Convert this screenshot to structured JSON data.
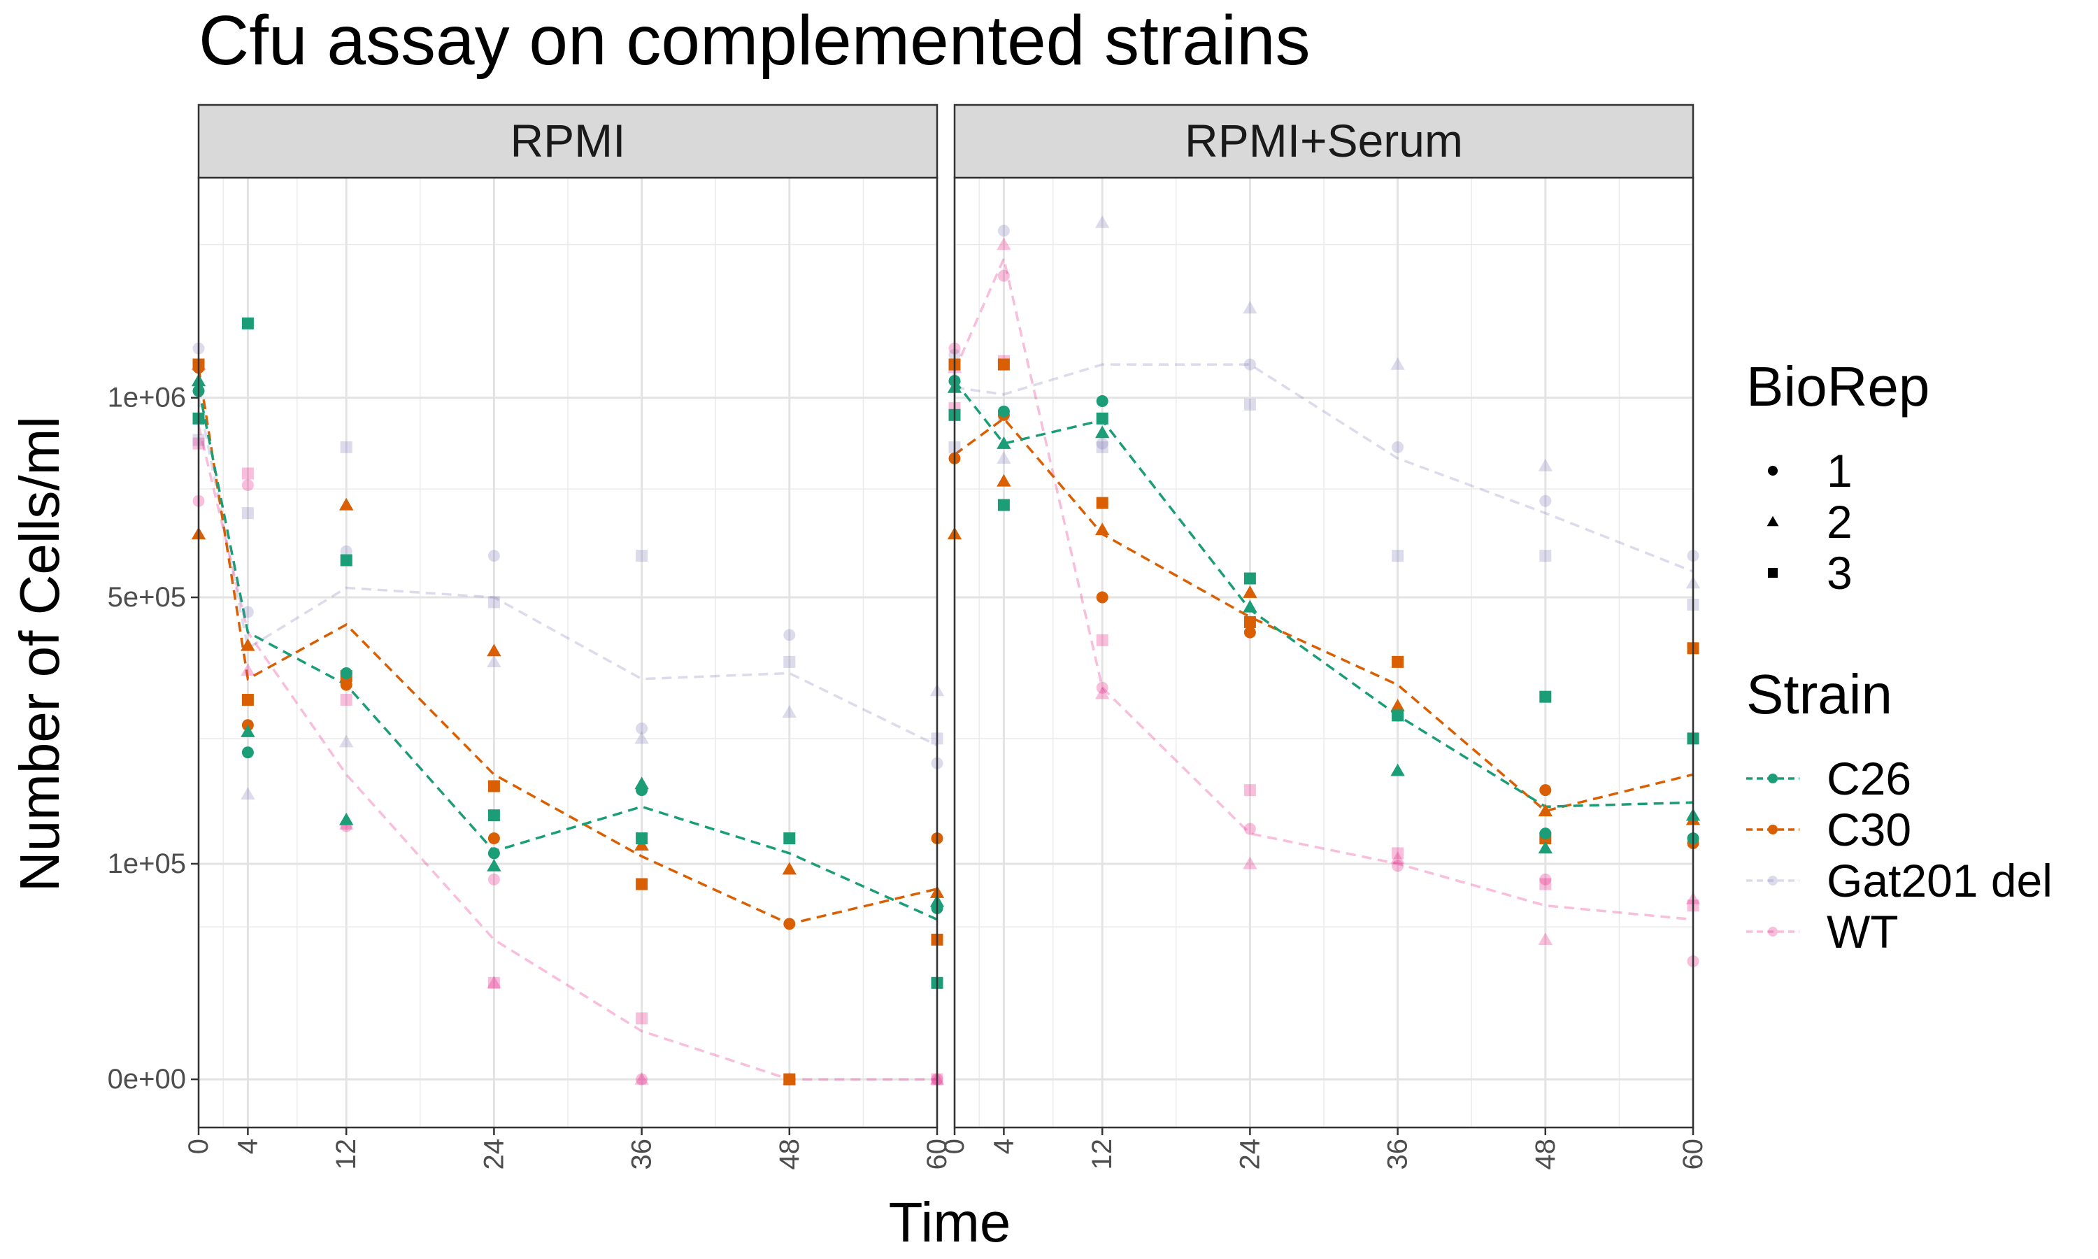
{
  "chart_data": {
    "type": "line",
    "title": "Cfu assay on complemented strains",
    "xlabel": "Time",
    "ylabel": "Number of Cells/ml",
    "x_ticks": [
      0,
      4,
      12,
      24,
      36,
      48,
      60
    ],
    "xlim": [
      0,
      60
    ],
    "y_scale": "sqrt",
    "y_ticks": [
      0,
      100000,
      500000,
      1000000
    ],
    "y_tick_labels": [
      "0e+00",
      "1e+05",
      "5e+05",
      "1e+06"
    ],
    "ylim": [
      -5000,
      1750000
    ],
    "grid": true,
    "legend_position": "right",
    "legends": {
      "shape": {
        "title": "BioRep",
        "entries": [
          "1",
          "2",
          "3"
        ],
        "shapes": [
          "circle",
          "triangle",
          "square"
        ]
      },
      "color": {
        "title": "Strain",
        "entries": [
          "C26",
          "C30",
          "Gat201 del",
          "WT"
        ]
      }
    },
    "colors": {
      "C26": "#1b9e77",
      "C30": "#d95f02",
      "Gat201 del": "#7570b3",
      "WT": "#e7298a"
    },
    "series_alpha": {
      "C26": 1,
      "C30": 1,
      "Gat201 del": 0.25,
      "WT": 0.3
    },
    "panels": [
      {
        "strip": "RPMI",
        "lines": {
          "C26": [
            [
              0,
              1030000
            ],
            [
              4,
              430000
            ],
            [
              12,
              335000
            ],
            [
              24,
              112000
            ],
            [
              36,
              160000
            ],
            [
              48,
              110000
            ],
            [
              60,
              55000
            ]
          ],
          "C30": [
            [
              0,
              1090000
            ],
            [
              4,
              345000
            ],
            [
              12,
              445000
            ],
            [
              24,
              200000
            ],
            [
              36,
              107000
            ],
            [
              48,
              52000
            ],
            [
              60,
              78000
            ]
          ],
          "Gat201 del": [
            [
              0,
              1000000
            ],
            [
              4,
              400000
            ],
            [
              12,
              520000
            ],
            [
              24,
              500000
            ],
            [
              36,
              345000
            ],
            [
              48,
              355000
            ],
            [
              60,
              240000
            ]
          ],
          "WT": [
            [
              0,
              920000
            ],
            [
              4,
              430000
            ],
            [
              12,
              200000
            ],
            [
              24,
              42000
            ],
            [
              36,
              5000
            ],
            [
              48,
              0
            ],
            [
              60,
              0
            ]
          ]
        },
        "points": {
          "C26": [
            [
              0,
              1020000,
              1
            ],
            [
              0,
              1050000,
              2
            ],
            [
              0,
              940000,
              3
            ],
            [
              4,
              230000,
              1
            ],
            [
              4,
              260000,
              2
            ],
            [
              4,
              1230000,
              3
            ],
            [
              12,
              355000,
              1
            ],
            [
              12,
              145000,
              2
            ],
            [
              12,
              580000,
              3
            ],
            [
              24,
              110000,
              1
            ],
            [
              24,
              98000,
              2
            ],
            [
              24,
              150000,
              3
            ],
            [
              36,
              180000,
              1
            ],
            [
              36,
              188000,
              2
            ],
            [
              36,
              125000,
              3
            ],
            [
              48,
              125000,
              3
            ],
            [
              60,
              63000,
              1
            ],
            [
              60,
              68000,
              2
            ],
            [
              60,
              20000,
              3
            ]
          ],
          "C30": [
            [
              0,
              1090000,
              1
            ],
            [
              0,
              640000,
              2
            ],
            [
              0,
              1100000,
              3
            ],
            [
              4,
              270000,
              1
            ],
            [
              4,
              405000,
              2
            ],
            [
              4,
              310000,
              3
            ],
            [
              12,
              335000,
              1
            ],
            [
              12,
              710000,
              2
            ],
            [
              12,
              350000,
              3
            ],
            [
              24,
              125000,
              1
            ],
            [
              24,
              395000,
              2
            ],
            [
              24,
              185000,
              3
            ],
            [
              36,
              118000,
              2
            ],
            [
              36,
              82000,
              3
            ],
            [
              48,
              52000,
              1
            ],
            [
              48,
              95000,
              2
            ],
            [
              48,
              0,
              3
            ],
            [
              60,
              125000,
              1
            ],
            [
              60,
              75000,
              2
            ],
            [
              60,
              42000,
              3
            ]
          ],
          "Gat201 del": [
            [
              0,
              1150000,
              1
            ],
            [
              0,
              1100000,
              2
            ],
            [
              0,
              880000,
              3
            ],
            [
              4,
              470000,
              1
            ],
            [
              4,
              175000,
              2
            ],
            [
              4,
              690000,
              3
            ],
            [
              12,
              600000,
              1
            ],
            [
              12,
              245000,
              2
            ],
            [
              12,
              860000,
              3
            ],
            [
              24,
              590000,
              1
            ],
            [
              24,
              375000,
              2
            ],
            [
              24,
              490000,
              3
            ],
            [
              36,
              265000,
              1
            ],
            [
              36,
              250000,
              2
            ],
            [
              36,
              590000,
              3
            ],
            [
              48,
              425000,
              1
            ],
            [
              48,
              290000,
              2
            ],
            [
              48,
              375000,
              3
            ],
            [
              60,
              215000,
              1
            ],
            [
              60,
              325000,
              2
            ],
            [
              60,
              250000,
              3
            ]
          ],
          "WT": [
            [
              0,
              720000,
              1
            ],
            [
              0,
              1100000,
              2
            ],
            [
              0,
              870000,
              3
            ],
            [
              4,
              760000,
              1
            ],
            [
              4,
              360000,
              2
            ],
            [
              4,
              790000,
              3
            ],
            [
              12,
              138000,
              1
            ],
            [
              12,
              140000,
              2
            ],
            [
              12,
              310000,
              3
            ],
            [
              24,
              86000,
              1
            ],
            [
              24,
              20000,
              2
            ],
            [
              24,
              20000,
              3
            ],
            [
              36,
              0,
              1
            ],
            [
              36,
              0,
              2
            ],
            [
              36,
              8000,
              3
            ],
            [
              48,
              0,
              1
            ],
            [
              48,
              0,
              2
            ],
            [
              48,
              0,
              3
            ],
            [
              60,
              0,
              1
            ],
            [
              60,
              0,
              2
            ],
            [
              60,
              0,
              3
            ]
          ]
        }
      },
      {
        "strip": "RPMI+Serum",
        "lines": {
          "C26": [
            [
              0,
              1050000
            ],
            [
              4,
              870000
            ],
            [
              12,
              935000
            ],
            [
              24,
              475000
            ],
            [
              36,
              285000
            ],
            [
              48,
              160000
            ],
            [
              60,
              165000
            ]
          ],
          "C30": [
            [
              0,
              840000
            ],
            [
              4,
              940000
            ],
            [
              12,
              640000
            ],
            [
              24,
              460000
            ],
            [
              36,
              335000
            ],
            [
              48,
              155000
            ],
            [
              60,
              200000
            ]
          ],
          "Gat201 del": [
            [
              0,
              1030000
            ],
            [
              4,
              1010000
            ],
            [
              12,
              1100000
            ],
            [
              24,
              1100000
            ],
            [
              36,
              830000
            ],
            [
              48,
              690000
            ],
            [
              60,
              555000
            ]
          ],
          "WT": [
            [
              0,
              1080000
            ],
            [
              4,
              1450000
            ],
            [
              12,
              330000
            ],
            [
              24,
              130000
            ],
            [
              36,
              100000
            ],
            [
              48,
              65000
            ],
            [
              60,
              55000
            ]
          ]
        },
        "points": {
          "C26": [
            [
              0,
              1050000,
              1
            ],
            [
              0,
              1030000,
              2
            ],
            [
              0,
              950000,
              3
            ],
            [
              4,
              960000,
              1
            ],
            [
              4,
              870000,
              2
            ],
            [
              4,
              710000,
              3
            ],
            [
              12,
              990000,
              1
            ],
            [
              12,
              900000,
              2
            ],
            [
              12,
              940000,
              3
            ],
            [
              24,
              480000,
              2
            ],
            [
              24,
              540000,
              3
            ],
            [
              36,
              285000,
              1
            ],
            [
              36,
              205000,
              2
            ],
            [
              36,
              285000,
              3
            ],
            [
              48,
              130000,
              1
            ],
            [
              48,
              115000,
              2
            ],
            [
              48,
              315000,
              3
            ],
            [
              60,
              125000,
              1
            ],
            [
              60,
              150000,
              2
            ],
            [
              60,
              250000,
              3
            ]
          ],
          "C30": [
            [
              0,
              830000,
              1
            ],
            [
              0,
              640000,
              2
            ],
            [
              0,
              1100000,
              3
            ],
            [
              4,
              950000,
              1
            ],
            [
              4,
              770000,
              2
            ],
            [
              4,
              1100000,
              3
            ],
            [
              12,
              500000,
              1
            ],
            [
              12,
              650000,
              2
            ],
            [
              12,
              715000,
              3
            ],
            [
              24,
              430000,
              1
            ],
            [
              24,
              510000,
              2
            ],
            [
              24,
              450000,
              3
            ],
            [
              36,
              300000,
              2
            ],
            [
              36,
              375000,
              3
            ],
            [
              48,
              180000,
              1
            ],
            [
              48,
              155000,
              2
            ],
            [
              48,
              125000,
              3
            ],
            [
              60,
              120000,
              1
            ],
            [
              60,
              145000,
              2
            ],
            [
              60,
              400000,
              3
            ]
          ],
          "Gat201 del": [
            [
              0,
              1130000,
              1
            ],
            [
              0,
              1060000,
              2
            ],
            [
              0,
              860000,
              3
            ],
            [
              4,
              1550000,
              1
            ],
            [
              4,
              830000,
              2
            ],
            [
              4,
              950000,
              3
            ],
            [
              12,
              870000,
              1
            ],
            [
              12,
              1580000,
              2
            ],
            [
              12,
              860000,
              3
            ],
            [
              24,
              1100000,
              1
            ],
            [
              24,
              1280000,
              2
            ],
            [
              24,
              980000,
              3
            ],
            [
              36,
              860000,
              1
            ],
            [
              36,
              1100000,
              2
            ],
            [
              36,
              590000,
              3
            ],
            [
              48,
              720000,
              1
            ],
            [
              48,
              810000,
              2
            ],
            [
              48,
              590000,
              3
            ],
            [
              60,
              590000,
              1
            ],
            [
              60,
              530000,
              2
            ],
            [
              60,
              485000,
              3
            ]
          ],
          "WT": [
            [
              0,
              1150000,
              1
            ],
            [
              0,
              1090000,
              2
            ],
            [
              0,
              970000,
              3
            ],
            [
              4,
              1390000,
              1
            ],
            [
              4,
              1500000,
              2
            ],
            [
              4,
              1110000,
              3
            ],
            [
              12,
              330000,
              1
            ],
            [
              12,
              320000,
              2
            ],
            [
              12,
              415000,
              3
            ],
            [
              24,
              135000,
              1
            ],
            [
              24,
              100000,
              2
            ],
            [
              24,
              180000,
              3
            ],
            [
              36,
              98000,
              1
            ],
            [
              36,
              105000,
              2
            ],
            [
              36,
              110000,
              3
            ],
            [
              48,
              86000,
              1
            ],
            [
              48,
              42000,
              2
            ],
            [
              48,
              82000,
              3
            ],
            [
              60,
              30000,
              1
            ],
            [
              60,
              70000,
              2
            ],
            [
              60,
              65000,
              3
            ]
          ]
        }
      }
    ]
  }
}
